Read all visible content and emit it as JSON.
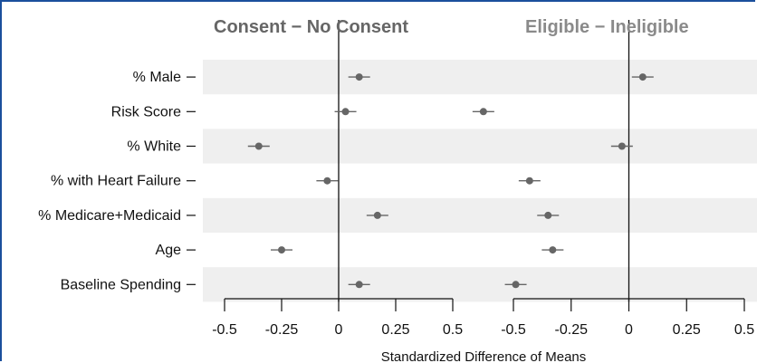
{
  "chart_data": {
    "type": "scatter",
    "xlabel": "Standardized Difference of Means",
    "categories": [
      "% Male",
      "Risk Score",
      "% White",
      "% with Heart Failure",
      "% Medicare+Medicaid",
      "Age",
      "Baseline Spending"
    ],
    "ticks": [
      "-0.5",
      "-0.25",
      "0",
      "0.25",
      "0.5"
    ],
    "panels": [
      {
        "title": "Consent − No Consent",
        "title_color": "#666666",
        "xlim": [
          -0.5,
          0.5
        ],
        "values": [
          0.09,
          0.03,
          -0.35,
          -0.05,
          0.17,
          -0.25,
          0.09
        ]
      },
      {
        "title": "Eligible − Ineligible",
        "title_color": "#8a8a8a",
        "xlim": [
          -0.5,
          0.5
        ],
        "values": [
          0.06,
          -0.63,
          -0.03,
          -0.43,
          -0.35,
          -0.33,
          -0.49
        ]
      }
    ],
    "grid": "alternating row bands",
    "colors": {
      "point": "#666666",
      "band": "#efefef",
      "axis": "#111111"
    }
  }
}
